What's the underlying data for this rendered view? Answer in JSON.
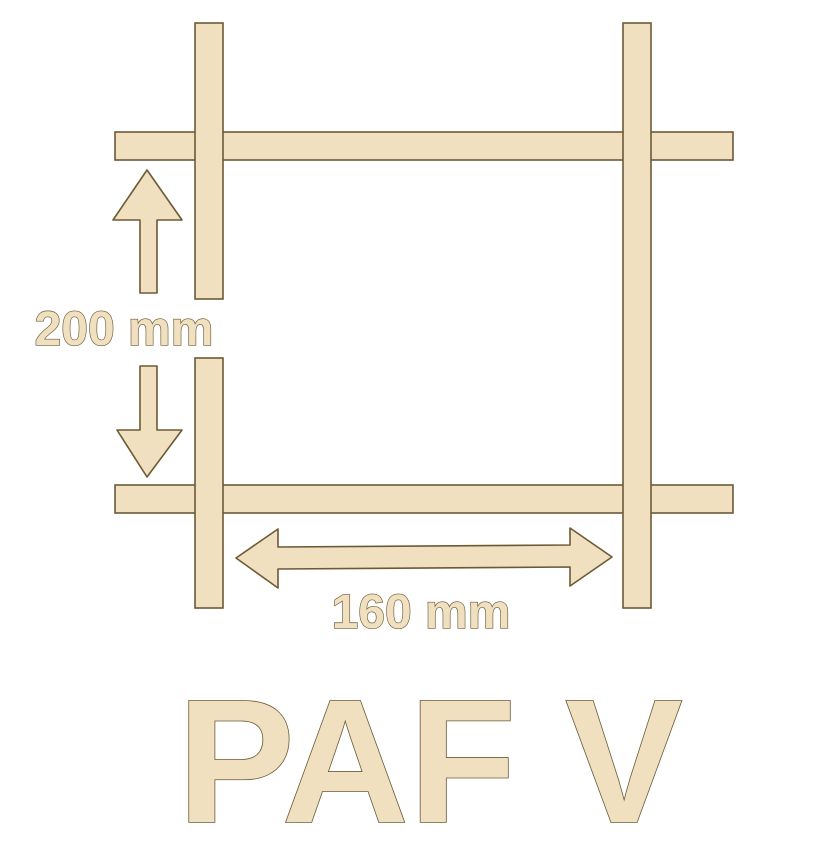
{
  "diagram": {
    "height_label": "200 mm",
    "width_label": "160 mm",
    "product_name": "PAF V"
  },
  "colors": {
    "fill": "#f0e0c0",
    "outline": "#6b5a35",
    "background": "#ffffff"
  }
}
